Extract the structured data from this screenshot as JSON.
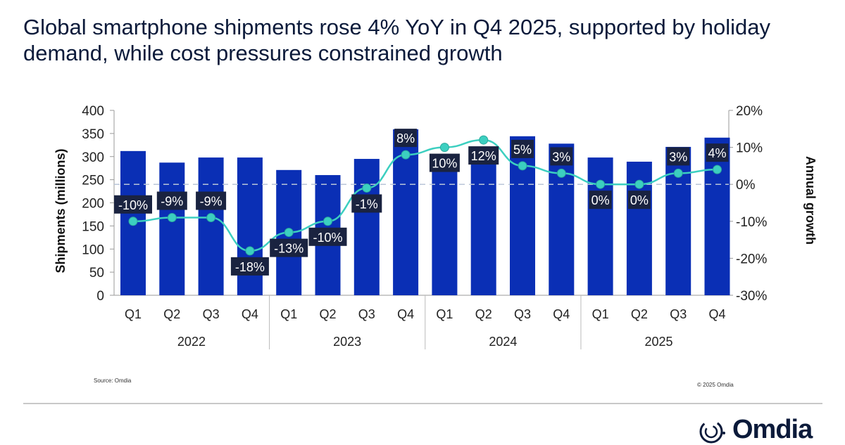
{
  "title": "Global smartphone shipments rose 4% YoY in Q4 2025, supported by holiday demand, while cost pressures constrained growth",
  "source": "Source: Omdia",
  "copyright": "© 2025 Omdia",
  "logo_text": "Omdia",
  "chart_data": {
    "type": "bar+line",
    "categories": [
      "Q1",
      "Q2",
      "Q3",
      "Q4",
      "Q1",
      "Q2",
      "Q3",
      "Q4",
      "Q1",
      "Q2",
      "Q3",
      "Q4",
      "Q1",
      "Q2",
      "Q3",
      "Q4"
    ],
    "years": [
      "2022",
      "2023",
      "2024",
      "2025"
    ],
    "ylabel": "Shipments (millions)",
    "y2label": "Annual growth",
    "ylim": [
      0,
      400
    ],
    "yticks": [
      "0",
      "50",
      "100",
      "150",
      "200",
      "250",
      "300",
      "350",
      "400"
    ],
    "y2lim": [
      -30,
      20
    ],
    "y2ticks": [
      "-30%",
      "-20%",
      "-10%",
      "0%",
      "10%",
      "20%"
    ],
    "series": [
      {
        "type": "bar",
        "values": [
          312,
          287,
          298,
          298,
          271,
          260,
          295,
          359,
          298,
          291,
          344,
          328,
          298,
          289,
          321,
          341
        ],
        "color": "#0a2fb5"
      },
      {
        "type": "line",
        "values": [
          -10,
          -9,
          -9,
          -18,
          -13,
          -10,
          -1,
          8,
          10,
          12,
          5,
          3,
          0,
          0,
          3,
          4
        ],
        "labels": [
          "-10%",
          "-9%",
          "-9%",
          "-18%",
          "-13%",
          "-10%",
          "-1%",
          "8%",
          "10%",
          "12%",
          "5%",
          "3%",
          "0%",
          "0%",
          "3%",
          "4%"
        ],
        "label_pos": [
          "above",
          "above",
          "above",
          "below",
          "below",
          "below",
          "below",
          "above",
          "below",
          "below",
          "above",
          "above",
          "below",
          "below",
          "above",
          "above"
        ],
        "color": "#3ccfc0"
      }
    ],
    "zero_growth_line": "dashed",
    "grid": false
  }
}
